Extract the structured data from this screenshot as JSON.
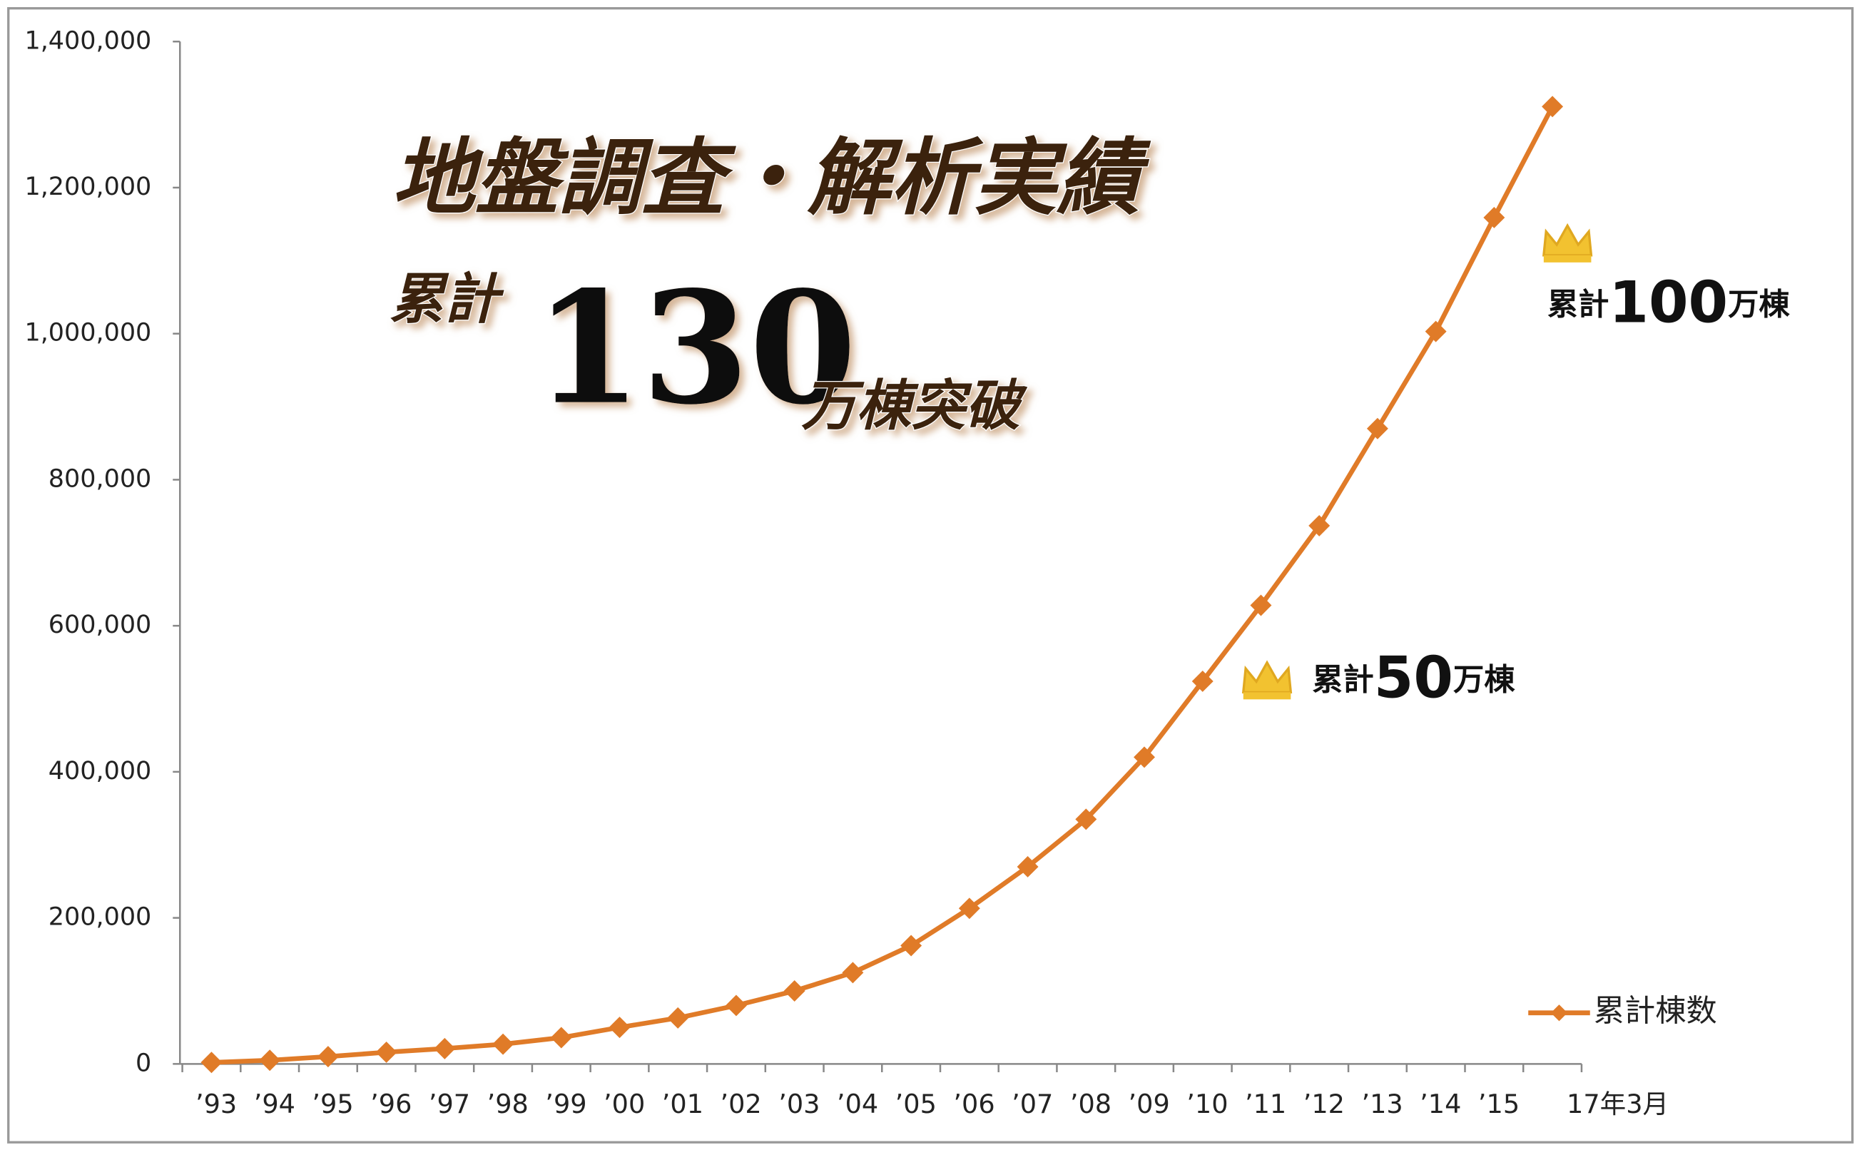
{
  "chart_data": {
    "type": "line",
    "title": "地盤調査・解析実績",
    "subtitle": {
      "prefix": "累計",
      "number": "130",
      "suffix": "万棟突破"
    },
    "annotations": [
      {
        "prefix": "累計",
        "number": "100",
        "suffix": "万棟"
      },
      {
        "prefix": "累計",
        "number": "50",
        "suffix": "万棟"
      }
    ],
    "categories": [
      "’93",
      "’94",
      "’95",
      "’96",
      "’97",
      "’98",
      "’99",
      "’00",
      "’01",
      "’02",
      "’03",
      "’04",
      "’05",
      "’06",
      "’07",
      "’08",
      "’09",
      "’10",
      "’11",
      "’12",
      "’13",
      "’14",
      "’15",
      "17年3月"
    ],
    "series": [
      {
        "name": "累計棟数",
        "color": "#e07b28",
        "values": [
          2000,
          5000,
          10000,
          16000,
          21000,
          27000,
          36000,
          50000,
          63000,
          80000,
          100000,
          125000,
          162000,
          213000,
          270000,
          335000,
          420000,
          524000,
          628000,
          737000,
          870000,
          1003000,
          1159000,
          1311000
        ]
      }
    ],
    "ylim": [
      0,
      1400000
    ],
    "yticks": [
      0,
      {
        "value": 200000,
        "label": "200,000"
      },
      {
        "value": 400000,
        "label": "400,000"
      },
      {
        "value": 600000,
        "label": "600,000"
      },
      {
        "value": 800000,
        "label": "800,000"
      },
      {
        "value": 1000000,
        "label": "1,000,000"
      },
      {
        "value": 1200000,
        "label": "1,200,000"
      },
      {
        "value": 1400000,
        "label": "1,400,000"
      }
    ],
    "grid": false,
    "legend": "bottom-right"
  }
}
